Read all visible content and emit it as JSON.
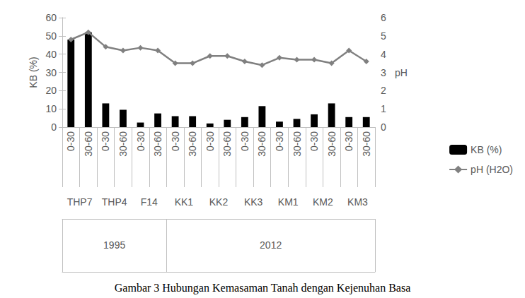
{
  "chart_data": {
    "type": "bar",
    "title": "Gambar 3 Hubungan Kemasaman Tanah dengan Kejenuhan Basa",
    "categories": [
      [
        "0-30",
        "THP7",
        "1995"
      ],
      [
        "30-60",
        "THP7",
        "1995"
      ],
      [
        "0-30",
        "THP4",
        "1995"
      ],
      [
        "30-60",
        "THP4",
        "1995"
      ],
      [
        "0-30",
        "F14",
        "1995"
      ],
      [
        "30-60",
        "F14",
        "1995"
      ],
      [
        "0-30",
        "KK1",
        "2012"
      ],
      [
        "30-60",
        "KK1",
        "2012"
      ],
      [
        "0-30",
        "KK2",
        "2012"
      ],
      [
        "30-60",
        "KK2",
        "2012"
      ],
      [
        "0-30",
        "KK3",
        "2012"
      ],
      [
        "30-60",
        "KK3",
        "2012"
      ],
      [
        "0-30",
        "KM1",
        "2012"
      ],
      [
        "30-60",
        "KM1",
        "2012"
      ],
      [
        "0-30",
        "KM2",
        "2012"
      ],
      [
        "30-60",
        "KM2",
        "2012"
      ],
      [
        "0-30",
        "KM3",
        "2012"
      ],
      [
        "30-60",
        "KM3",
        "2012"
      ]
    ],
    "series": [
      {
        "name": "KB (%)",
        "type": "bar",
        "color": "#000000",
        "values": [
          48,
          52,
          13,
          9.5,
          2.5,
          7.5,
          6,
          6,
          2,
          4,
          5.5,
          11.5,
          3,
          4.5,
          7,
          13,
          5.5,
          5.5
        ]
      },
      {
        "name": "pH (H2O)",
        "type": "line",
        "color": "#808080",
        "marker": "diamond",
        "axis": "y2",
        "values": [
          4.8,
          5.2,
          4.4,
          4.2,
          4.35,
          4.2,
          3.5,
          3.5,
          3.9,
          3.9,
          3.6,
          3.4,
          3.8,
          3.7,
          3.7,
          3.5,
          4.2,
          3.6
        ]
      }
    ],
    "ylabel": "KB (%)",
    "y2label": "pH",
    "ylim": [
      0,
      60
    ],
    "yticks": [
      0,
      10,
      20,
      30,
      40,
      50,
      60
    ],
    "y2lim": [
      0,
      6
    ],
    "y2ticks": [
      0,
      1,
      2,
      3,
      4,
      5,
      6
    ],
    "grid": false,
    "legend": "right"
  }
}
